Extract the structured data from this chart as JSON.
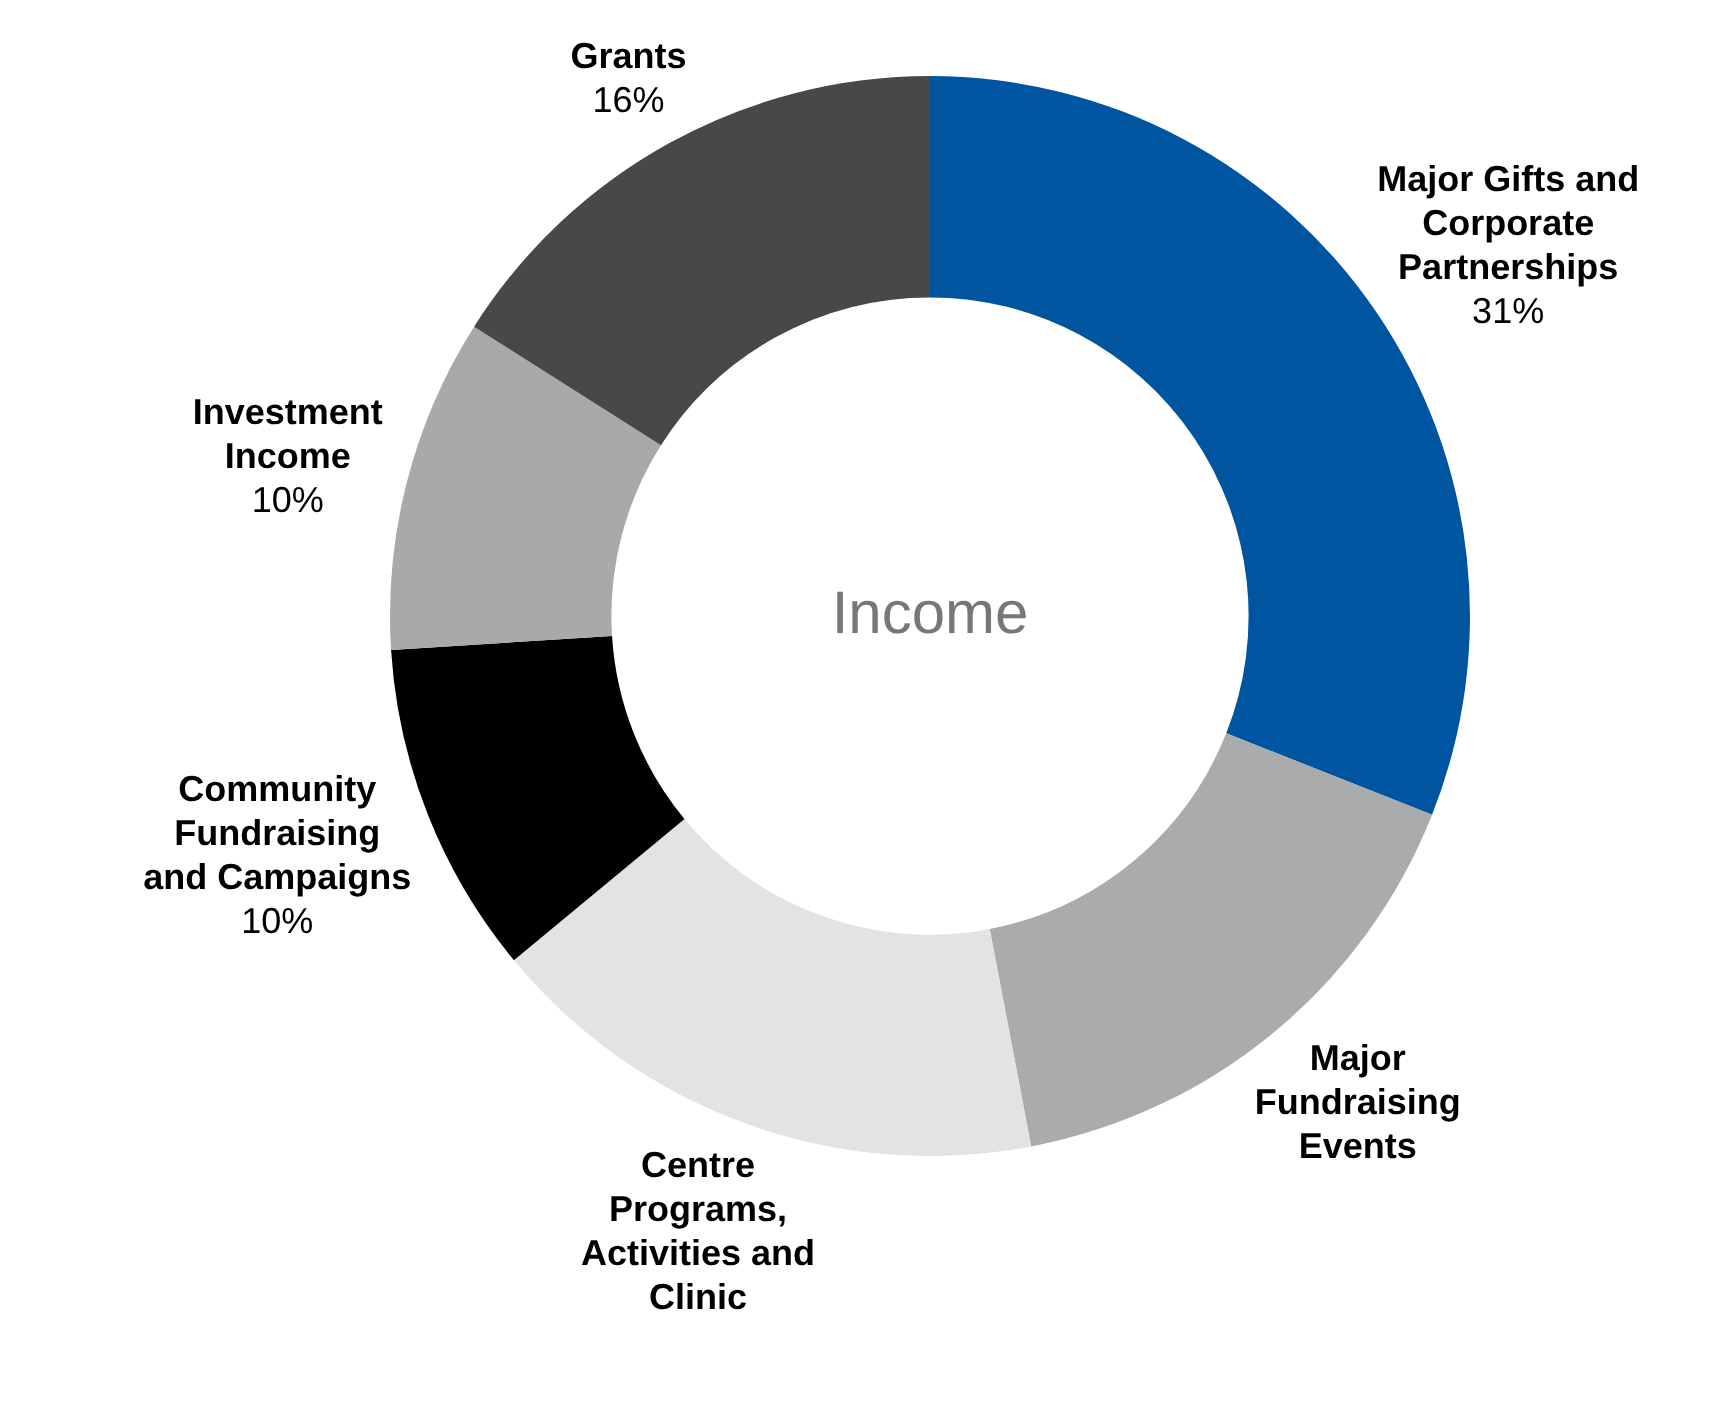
{
  "chart_data": {
    "type": "donut",
    "title": "Income",
    "categories": [
      "Major Gifts and Corporate Partnerships",
      "Major Fundraising Events",
      "Centre Programs, Activities and Clinic",
      "Community Fundraising and Campaigns",
      "Investment Income",
      "Grants"
    ],
    "values": [
      31,
      16,
      17,
      10,
      10,
      16
    ],
    "value_labels": [
      "31%",
      null,
      null,
      "10%",
      "10%",
      "16%"
    ],
    "colors": [
      "#0055a0",
      "#aaabad",
      "#e2e3e5",
      "#000000",
      "#a8a9ab",
      "#48484a"
    ],
    "legend": false
  }
}
